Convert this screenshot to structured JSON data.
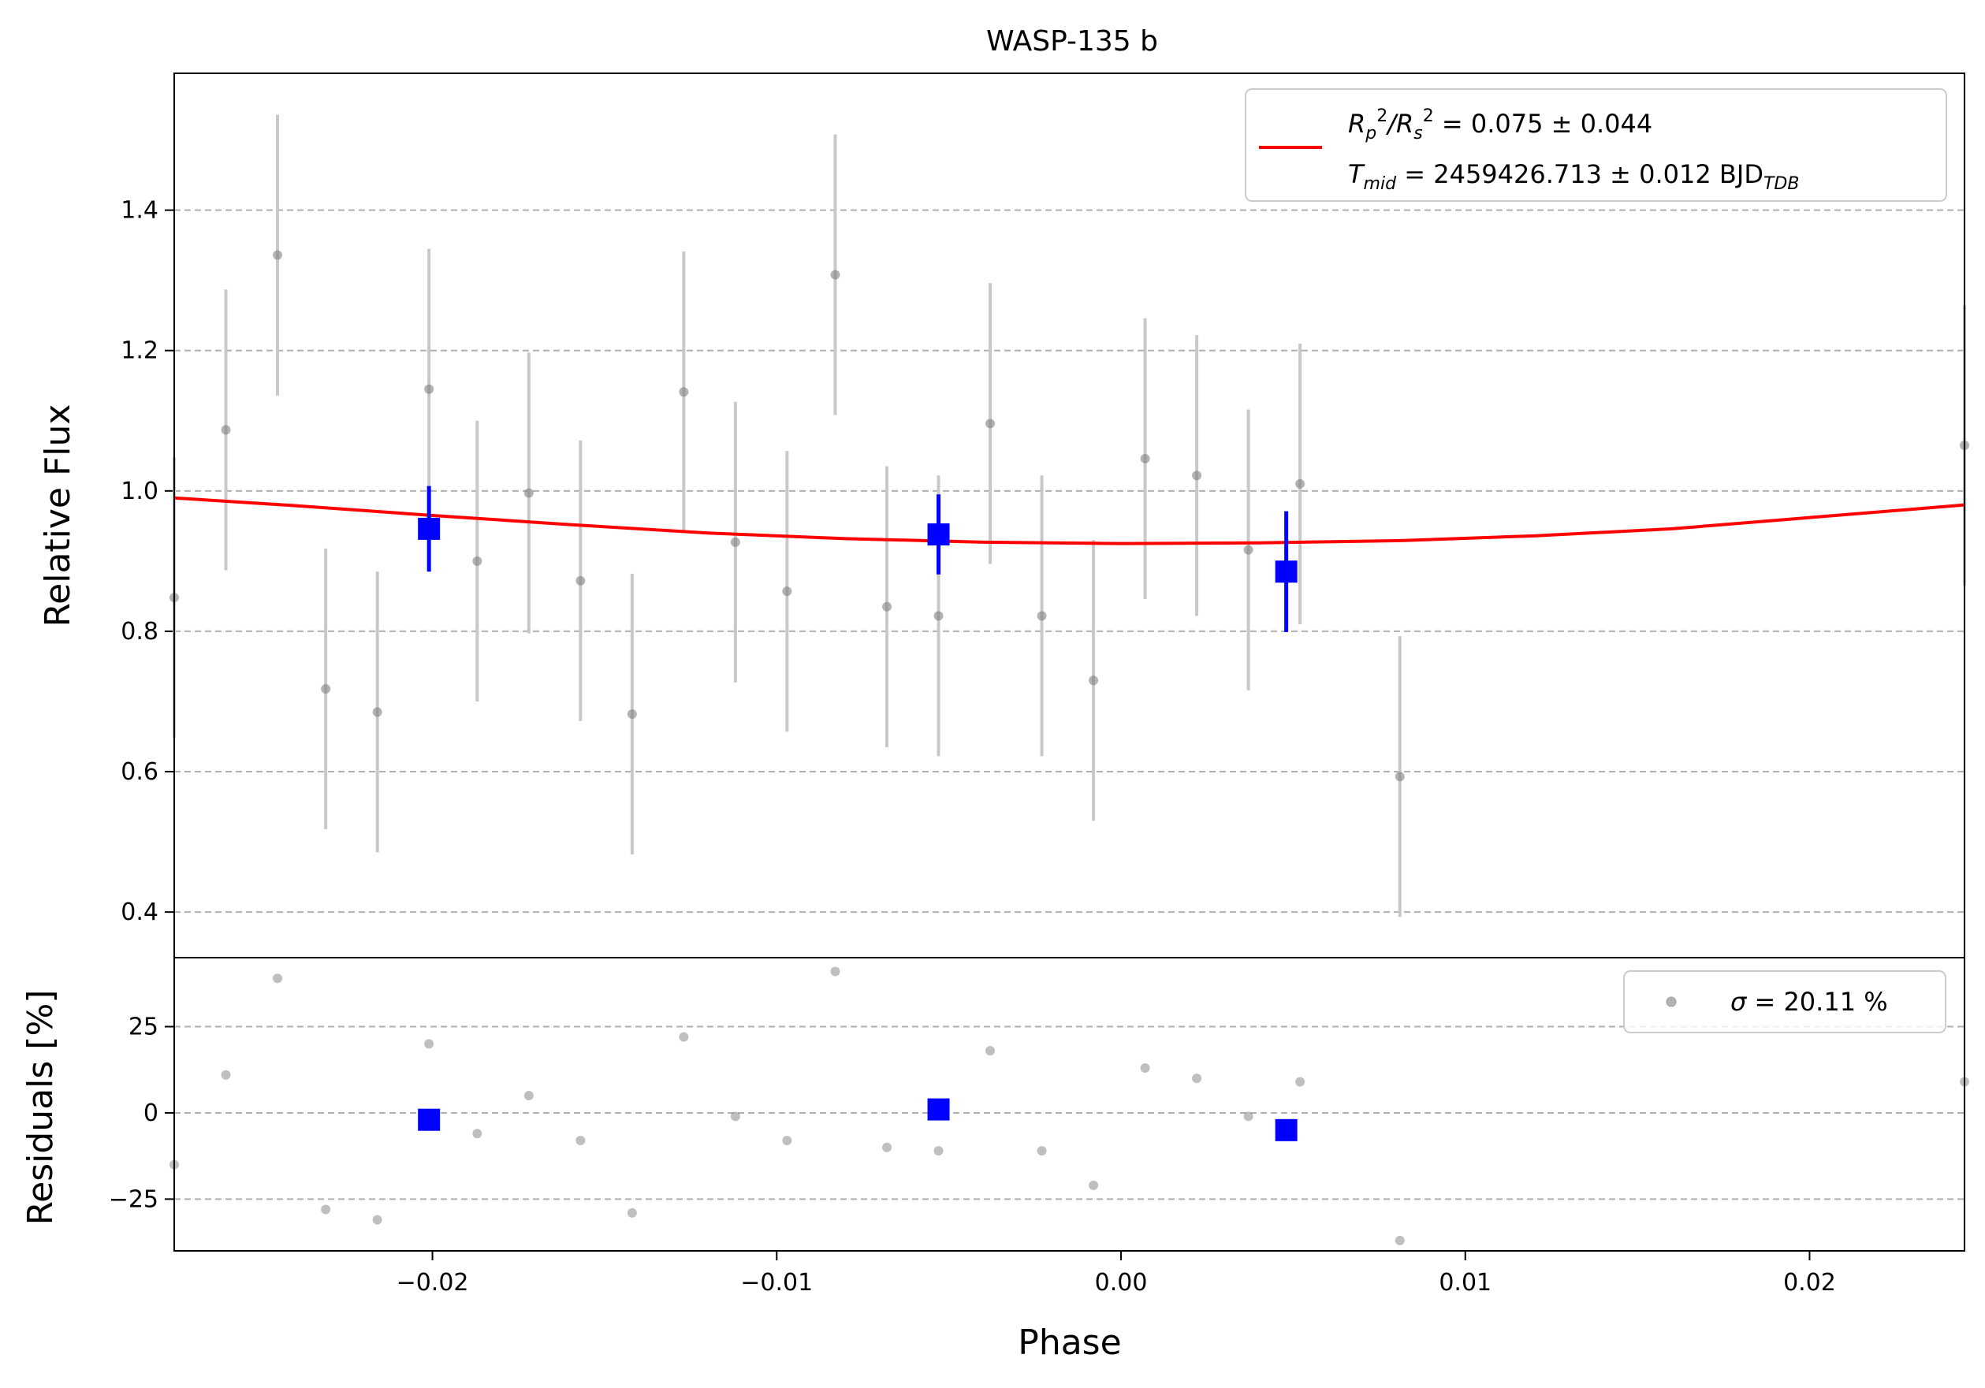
{
  "chart_data": [
    {
      "type": "scatter",
      "panel": "main",
      "title": "WASP-135 b",
      "xlabel": "",
      "ylabel": "Relative Flux",
      "xlim": [
        -0.0275,
        0.0245
      ],
      "ylim": [
        0.335,
        1.595
      ],
      "yticks": [
        0.4,
        0.6,
        0.8,
        1.0,
        1.2,
        1.4
      ],
      "ytick_labels": [
        "0.4",
        "0.6",
        "0.8",
        "1.0",
        "1.2",
        "1.4"
      ],
      "grid": "horizontal dashed",
      "legend_placement": "top-right",
      "legend": {
        "line1_parts": [
          "R",
          "p",
          "2",
          "/R",
          "s",
          "2",
          " = 0.075 ± 0.044"
        ],
        "line2_parts": [
          "T",
          "mid",
          " = 2459426.713 ± 0.012 BJD",
          "TDB"
        ]
      },
      "series": [
        {
          "name": "data",
          "kind": "points_with_errorbars",
          "color": "#808080",
          "errcolor": "#c8c8c8",
          "points": [
            {
              "x": -0.0275,
              "y": 0.848,
              "err": 0.2
            },
            {
              "x": -0.026,
              "y": 1.087,
              "err": 0.2
            },
            {
              "x": -0.0245,
              "y": 1.336,
              "err": 0.2
            },
            {
              "x": -0.0231,
              "y": 0.718,
              "err": 0.2
            },
            {
              "x": -0.0216,
              "y": 0.685,
              "err": 0.2
            },
            {
              "x": -0.0201,
              "y": 1.145,
              "err": 0.2
            },
            {
              "x": -0.0187,
              "y": 0.9,
              "err": 0.2
            },
            {
              "x": -0.0172,
              "y": 0.997,
              "err": 0.2
            },
            {
              "x": -0.0157,
              "y": 0.872,
              "err": 0.2
            },
            {
              "x": -0.0142,
              "y": 0.682,
              "err": 0.2
            },
            {
              "x": -0.0127,
              "y": 1.141,
              "err": 0.2
            },
            {
              "x": -0.0112,
              "y": 0.927,
              "err": 0.2
            },
            {
              "x": -0.0097,
              "y": 0.857,
              "err": 0.2
            },
            {
              "x": -0.0083,
              "y": 1.308,
              "err": 0.2
            },
            {
              "x": -0.0068,
              "y": 0.835,
              "err": 0.2
            },
            {
              "x": -0.0053,
              "y": 0.822,
              "err": 0.2
            },
            {
              "x": -0.0038,
              "y": 1.096,
              "err": 0.2
            },
            {
              "x": -0.0023,
              "y": 0.822,
              "err": 0.2
            },
            {
              "x": -0.0008,
              "y": 0.73,
              "err": 0.2
            },
            {
              "x": 0.0007,
              "y": 1.046,
              "err": 0.2
            },
            {
              "x": 0.0022,
              "y": 1.022,
              "err": 0.2
            },
            {
              "x": 0.0037,
              "y": 0.916,
              "err": 0.2
            },
            {
              "x": 0.0052,
              "y": 1.01,
              "err": 0.2
            },
            {
              "x": 0.0081,
              "y": 0.593,
              "err": 0.2
            },
            {
              "x": 0.0245,
              "y": 1.065,
              "err": 0.2
            }
          ]
        },
        {
          "name": "binned",
          "kind": "square_markers_with_errorbars",
          "color": "#0000ff",
          "points": [
            {
              "x": -0.0201,
              "y": 0.946,
              "err": 0.061
            },
            {
              "x": -0.0053,
              "y": 0.938,
              "err": 0.057
            },
            {
              "x": 0.0048,
              "y": 0.885,
              "err": 0.086
            }
          ]
        },
        {
          "name": "model",
          "kind": "line",
          "color": "#ff0000",
          "points": [
            {
              "x": -0.0275,
              "y": 0.99
            },
            {
              "x": -0.024,
              "y": 0.979
            },
            {
              "x": -0.02,
              "y": 0.965
            },
            {
              "x": -0.016,
              "y": 0.952
            },
            {
              "x": -0.012,
              "y": 0.94
            },
            {
              "x": -0.008,
              "y": 0.932
            },
            {
              "x": -0.004,
              "y": 0.927
            },
            {
              "x": 0.0,
              "y": 0.925
            },
            {
              "x": 0.004,
              "y": 0.926
            },
            {
              "x": 0.008,
              "y": 0.929
            },
            {
              "x": 0.012,
              "y": 0.936
            },
            {
              "x": 0.016,
              "y": 0.946
            },
            {
              "x": 0.02,
              "y": 0.962
            },
            {
              "x": 0.0245,
              "y": 0.98
            }
          ]
        }
      ]
    },
    {
      "type": "scatter",
      "panel": "residuals",
      "title": "",
      "xlabel": "Phase",
      "ylabel": "Residuals [%]",
      "xlim": [
        -0.0275,
        0.0245
      ],
      "ylim": [
        -40,
        45
      ],
      "yticks": [
        -25,
        0,
        25
      ],
      "ytick_labels": [
        "−25",
        "0",
        "25"
      ],
      "xticks": [
        -0.02,
        -0.01,
        0.0,
        0.01,
        0.02
      ],
      "xtick_labels": [
        "−0.02",
        "−0.01",
        "0.00",
        "0.01",
        "0.02"
      ],
      "grid": "horizontal dashed",
      "legend_placement": "top-right",
      "legend": {
        "label_parts": [
          "σ",
          " = 20.11 %"
        ]
      },
      "series": [
        {
          "name": "residuals",
          "kind": "points",
          "color": "#808080",
          "points": [
            {
              "x": -0.0275,
              "y": -15
            },
            {
              "x": -0.026,
              "y": 11
            },
            {
              "x": -0.0245,
              "y": 39
            },
            {
              "x": -0.0231,
              "y": -28
            },
            {
              "x": -0.0216,
              "y": -31
            },
            {
              "x": -0.0201,
              "y": 20
            },
            {
              "x": -0.0187,
              "y": -6
            },
            {
              "x": -0.0172,
              "y": 5
            },
            {
              "x": -0.0157,
              "y": -8
            },
            {
              "x": -0.0142,
              "y": -29
            },
            {
              "x": -0.0127,
              "y": 22
            },
            {
              "x": -0.0112,
              "y": -1
            },
            {
              "x": -0.0097,
              "y": -8
            },
            {
              "x": -0.0083,
              "y": 41
            },
            {
              "x": -0.0068,
              "y": -10
            },
            {
              "x": -0.0053,
              "y": -11
            },
            {
              "x": -0.0038,
              "y": 18
            },
            {
              "x": -0.0023,
              "y": -11
            },
            {
              "x": -0.0008,
              "y": -21
            },
            {
              "x": 0.0007,
              "y": 13
            },
            {
              "x": 0.0022,
              "y": 10
            },
            {
              "x": 0.0037,
              "y": -1
            },
            {
              "x": 0.0052,
              "y": 9
            },
            {
              "x": 0.0081,
              "y": -37
            },
            {
              "x": 0.0245,
              "y": 9
            }
          ]
        },
        {
          "name": "binned residuals",
          "kind": "square_markers",
          "color": "#0000ff",
          "points": [
            {
              "x": -0.0201,
              "y": -2
            },
            {
              "x": -0.0053,
              "y": 1
            },
            {
              "x": 0.0048,
              "y": -5
            }
          ]
        }
      ]
    }
  ]
}
